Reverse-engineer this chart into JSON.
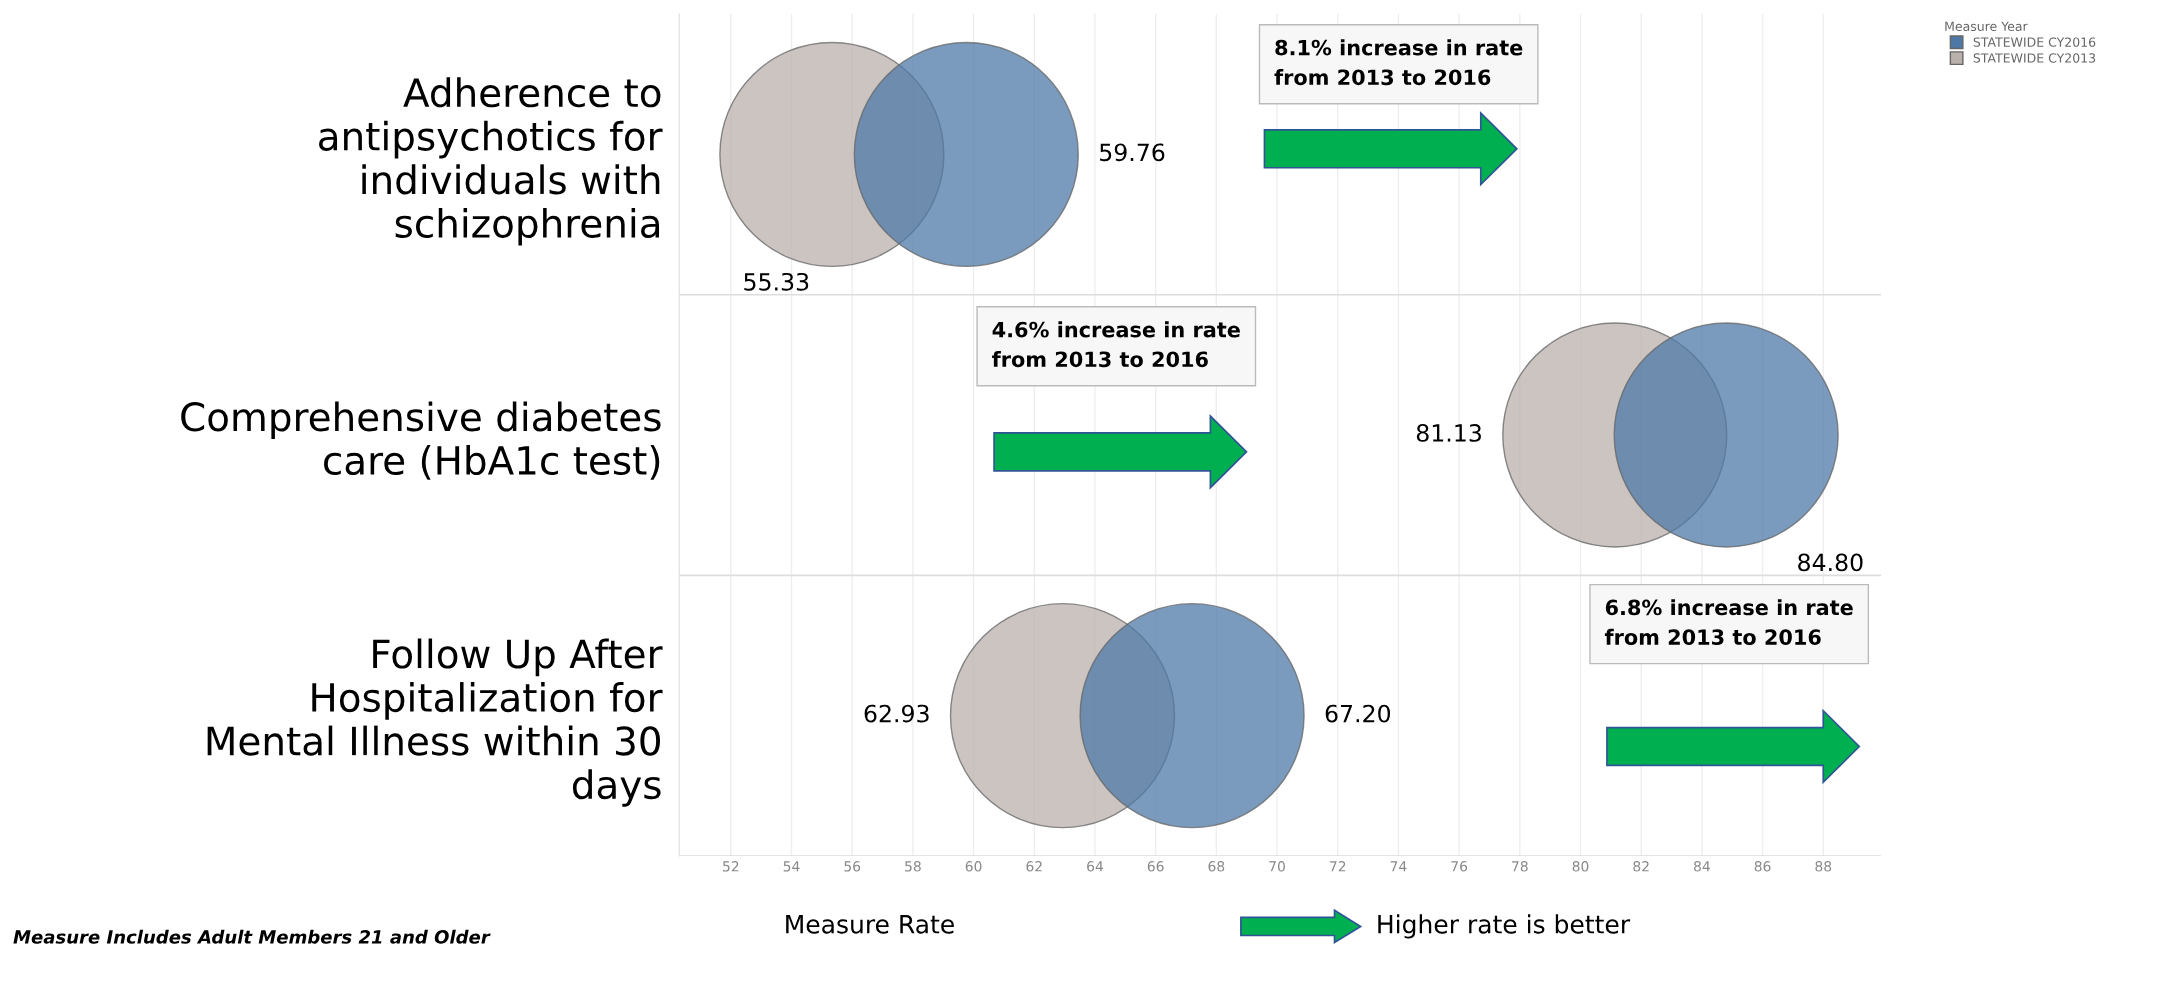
{
  "chart_data": {
    "type": "scatter",
    "orientation": "horizontal",
    "categories": [
      "Adherence to\nantipsychotics for\nindividuals with\nschizophrenia",
      "Comprehensive diabetes\ncare (HbA1c test)",
      "Follow Up After\nHospitalization for\nMental Illness within 30\ndays"
    ],
    "series": [
      {
        "name": "STATEWIDE CY2016",
        "color": "#4e79a7",
        "values": [
          59.76,
          84.8,
          67.2
        ],
        "value_labels": [
          "59.76",
          "84.80",
          "67.20"
        ]
      },
      {
        "name": "STATEWIDE CY2013",
        "color": "#bab0ac",
        "values": [
          55.33,
          81.13,
          62.93
        ],
        "value_labels": [
          "55.33",
          "81.13",
          "62.93"
        ]
      }
    ],
    "xlim": [
      50.3,
      89.9
    ],
    "xticks": [
      52,
      54,
      56,
      58,
      60,
      62,
      64,
      66,
      68,
      70,
      72,
      74,
      76,
      78,
      80,
      82,
      84,
      86,
      88
    ],
    "xlabel": "Measure Rate",
    "legend_title": "Measure Year",
    "legend": "top right",
    "grid": "x",
    "marker": "circle",
    "annotations": [
      "8.1% increase in rate\nfrom 2013 to 2016",
      "4.6% increase in rate\nfrom 2013 to 2016",
      "6.8% increase in rate\nfrom 2013 to 2016",
      "Measure Includes Adult Members 21 and Older",
      "Higher rate is better"
    ]
  }
}
